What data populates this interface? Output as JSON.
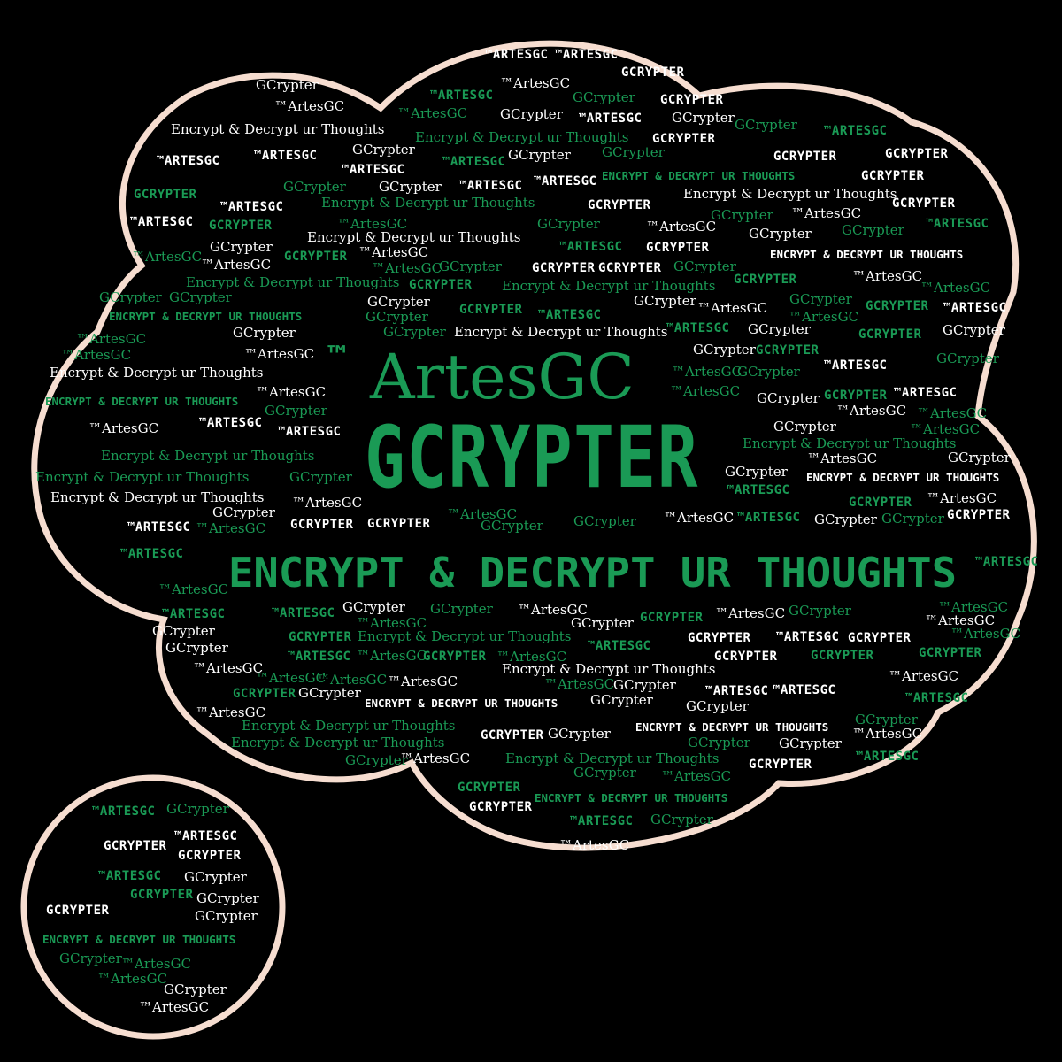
{
  "colors": {
    "background": "#000000",
    "outline": "#f6ddd0",
    "green": "#1a9a55",
    "white": "#ffffff"
  },
  "hero": {
    "tm": "™",
    "brand": "ArtesGC",
    "title": "GCRYPTER",
    "tagline": "ENCRYPT & DECRYPT UR THOUGHTS"
  },
  "words": {
    "artes": "™ArtesGC",
    "artes_caps": "™ARTESGC",
    "gcrypter": "GCrypter",
    "gcrypter_caps": "GCRYPTER",
    "phrase": "Encrypt & Decrypt ur Thoughts",
    "phrase_caps": "ENCRYPT & DECRYPT UR THOUGHTS"
  },
  "icons": {
    "main_bubble": "thought-cloud-icon",
    "small_bubble": "thought-bubble-icon"
  }
}
